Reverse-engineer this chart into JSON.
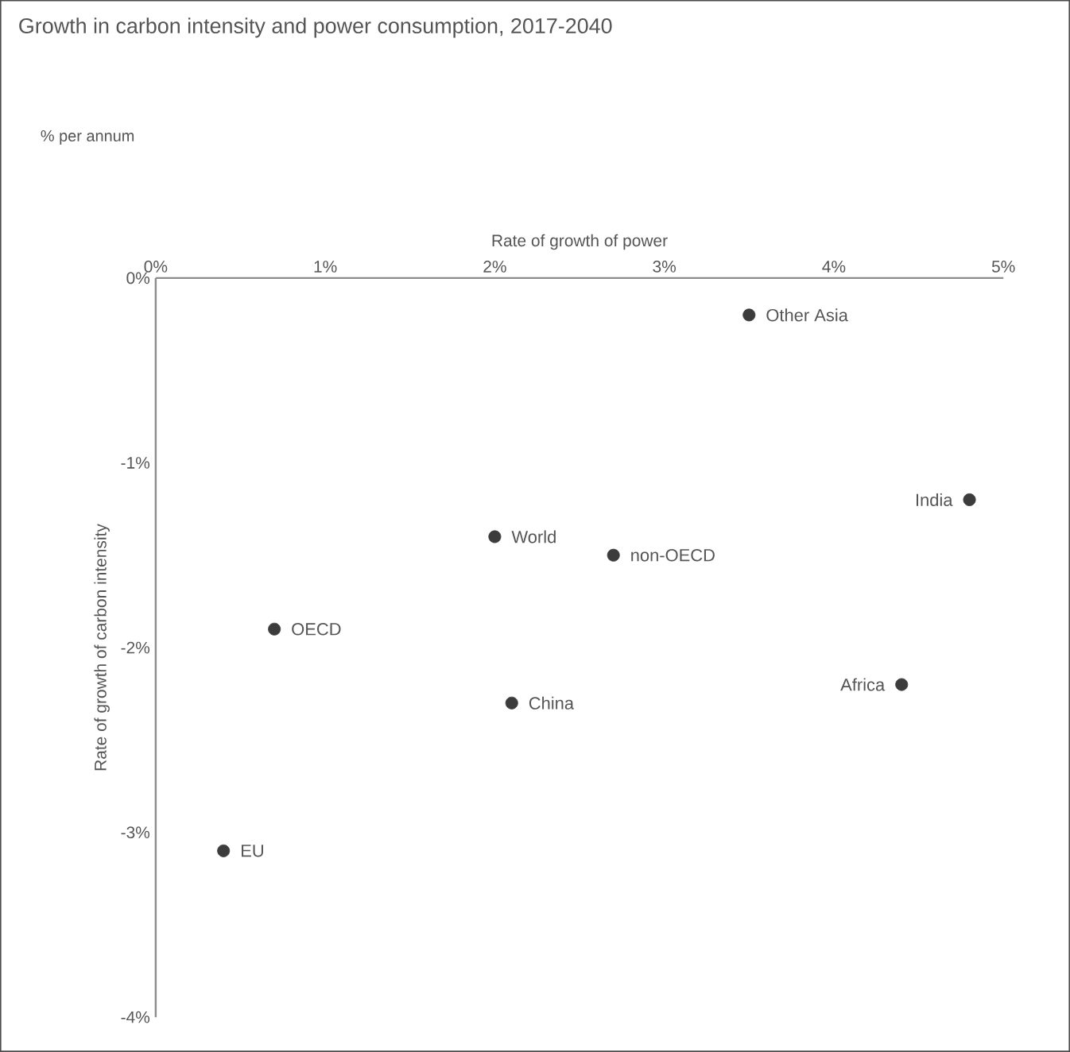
{
  "chart_data": {
    "type": "scatter",
    "title": "Growth in carbon intensity and power consumption, 2017-2040",
    "subtitle": "% per annum",
    "xlabel": "Rate of growth of power",
    "ylabel": "Rate of growth of carbon intensity",
    "x": [
      3.5,
      2.0,
      2.7,
      4.8,
      0.7,
      2.1,
      4.4,
      0.4
    ],
    "values": [
      -0.2,
      -1.4,
      -1.5,
      -1.2,
      -1.9,
      -2.3,
      -2.2,
      -3.1
    ],
    "color": "#3c3c3c",
    "marker": "circle",
    "xlim": [
      0,
      5
    ],
    "ylim": [
      -4,
      0
    ],
    "xticks": [
      {
        "value": 0,
        "label": "0%"
      },
      {
        "value": 1,
        "label": "1%"
      },
      {
        "value": 2,
        "label": "2%"
      },
      {
        "value": 3,
        "label": "3%"
      },
      {
        "value": 4,
        "label": "4%"
      },
      {
        "value": 5,
        "label": "5%"
      }
    ],
    "yticks": [
      {
        "value": 0,
        "label": "0%"
      },
      {
        "value": -1,
        "label": "-1%"
      },
      {
        "value": -2,
        "label": "-2%"
      },
      {
        "value": -3,
        "label": "-3%"
      },
      {
        "value": -4,
        "label": "-4%"
      }
    ],
    "annotations": [
      {
        "text": "Other Asia",
        "x": 3.5,
        "y": -0.2
      },
      {
        "text": "World",
        "x": 2.0,
        "y": -1.4
      },
      {
        "text": "non-OECD",
        "x": 2.7,
        "y": -1.5
      },
      {
        "text": "India",
        "x": 4.8,
        "y": -1.2
      },
      {
        "text": "OECD",
        "x": 0.7,
        "y": -1.9
      },
      {
        "text": "China",
        "x": 2.1,
        "y": -2.3
      },
      {
        "text": "Africa",
        "x": 4.4,
        "y": -2.2
      },
      {
        "text": "EU",
        "x": 0.4,
        "y": -3.1
      }
    ]
  }
}
